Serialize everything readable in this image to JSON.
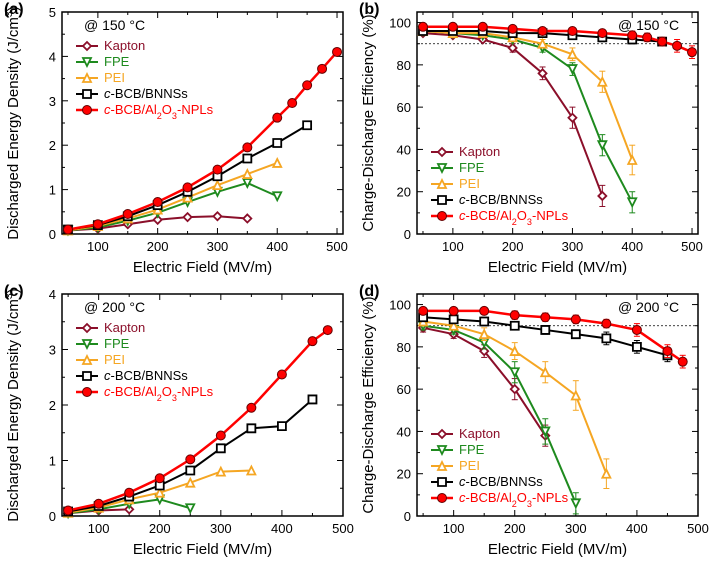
{
  "global": {
    "font_family": "Arial",
    "background_color": "#ffffff",
    "axis_color": "#000000",
    "tick_font_size": 13,
    "label_font_size": 15,
    "legend_font_size": 13,
    "panel_label_font_size": 16,
    "temp_label_font_size": 14
  },
  "series_styles": {
    "Kapton": {
      "color": "#8b0f2a",
      "marker": "diamond-open",
      "line_width": 2,
      "marker_size": 8
    },
    "FPE": {
      "color": "#1e8a1e",
      "marker": "triangle-down-open",
      "line_width": 2,
      "marker_size": 8
    },
    "PEI": {
      "color": "#f5a623",
      "marker": "triangle-up-open",
      "line_width": 2,
      "marker_size": 8
    },
    "c-BCB/BNNSs": {
      "color": "#000000",
      "marker": "square-open",
      "line_width": 2,
      "marker_size": 8
    },
    "c-BCB/Al2O3-NPLs": {
      "color": "#ff0000",
      "marker": "circle-filled",
      "line_width": 2.5,
      "marker_size": 9
    }
  },
  "panels": {
    "a": {
      "label": "(a)",
      "temp": "@ 150 °C",
      "xlabel": "Electric Field (MV/m)",
      "ylabel": "Discharged Energy Density (J/cm³)",
      "xlim": [
        40,
        510
      ],
      "ylim": [
        0,
        5
      ],
      "xticks": [
        100,
        200,
        300,
        400,
        500
      ],
      "yticks": [
        0,
        1,
        2,
        3,
        4,
        5
      ],
      "xminor": 50,
      "yminor": 0.5,
      "legend_pos": "upper-left",
      "data": {
        "Kapton": {
          "x": [
            50,
            100,
            150,
            200,
            250,
            300,
            350
          ],
          "y": [
            0.08,
            0.12,
            0.22,
            0.32,
            0.38,
            0.4,
            0.35
          ]
        },
        "FPE": {
          "x": [
            50,
            100,
            150,
            200,
            250,
            300,
            350,
            400
          ],
          "y": [
            0.08,
            0.15,
            0.3,
            0.48,
            0.72,
            0.95,
            1.15,
            0.85
          ]
        },
        "PEI": {
          "x": [
            50,
            100,
            150,
            200,
            250,
            300,
            350,
            400
          ],
          "y": [
            0.08,
            0.18,
            0.35,
            0.55,
            0.82,
            1.1,
            1.35,
            1.6
          ]
        },
        "c-BCB/BNNSs": {
          "x": [
            50,
            100,
            150,
            200,
            250,
            300,
            350,
            400,
            450
          ],
          "y": [
            0.1,
            0.2,
            0.4,
            0.65,
            0.95,
            1.3,
            1.7,
            2.05,
            2.45
          ]
        },
        "c-BCB/Al2O3-NPLs": {
          "x": [
            50,
            100,
            150,
            200,
            250,
            300,
            350,
            400,
            425,
            450,
            475,
            500
          ],
          "y": [
            0.1,
            0.22,
            0.45,
            0.72,
            1.05,
            1.45,
            1.95,
            2.62,
            2.95,
            3.35,
            3.72,
            4.1
          ]
        }
      }
    },
    "b": {
      "label": "(b)",
      "temp": "@ 150 °C",
      "xlabel": "Electric Field (MV/m)",
      "ylabel": "Charge-Discharge Efficiency (%)",
      "xlim": [
        40,
        510
      ],
      "ylim": [
        0,
        105
      ],
      "xticks": [
        100,
        200,
        300,
        400,
        500
      ],
      "yticks": [
        0,
        20,
        40,
        60,
        80,
        100
      ],
      "xminor": 50,
      "yminor": 10,
      "legend_pos": "lower-left",
      "ref_line_y": 90,
      "data": {
        "Kapton": {
          "x": [
            50,
            100,
            150,
            200,
            250,
            300,
            350
          ],
          "y": [
            95,
            94,
            92,
            88,
            76,
            55,
            18
          ],
          "err": [
            0,
            0,
            1,
            2,
            3,
            5,
            5
          ]
        },
        "FPE": {
          "x": [
            50,
            100,
            150,
            200,
            250,
            300,
            350,
            400
          ],
          "y": [
            96,
            95,
            94,
            92,
            88,
            78,
            42,
            15
          ],
          "err": [
            0,
            0,
            1,
            1,
            2,
            3,
            5,
            5
          ]
        },
        "PEI": {
          "x": [
            50,
            100,
            150,
            200,
            250,
            300,
            350,
            400
          ],
          "y": [
            96,
            95,
            95,
            93,
            90,
            85,
            72,
            35
          ],
          "err": [
            0,
            0,
            1,
            1,
            2,
            3,
            5,
            7
          ]
        },
        "c-BCB/BNNSs": {
          "x": [
            50,
            100,
            150,
            200,
            250,
            300,
            350,
            400,
            450
          ],
          "y": [
            96,
            96,
            96,
            95,
            95,
            94,
            93,
            92,
            91
          ],
          "err": [
            0,
            0,
            1,
            1,
            1,
            1,
            2,
            2,
            2
          ]
        },
        "c-BCB/Al2O3-NPLs": {
          "x": [
            50,
            100,
            150,
            200,
            250,
            300,
            350,
            400,
            425,
            450,
            475,
            500
          ],
          "y": [
            98,
            98,
            98,
            97,
            96,
            96,
            95,
            94,
            93,
            91,
            89,
            86
          ],
          "err": [
            0,
            0,
            1,
            1,
            1,
            1,
            1,
            2,
            2,
            2,
            3,
            3
          ]
        }
      }
    },
    "c": {
      "label": "(c)",
      "temp": "@ 200 °C",
      "xlabel": "Electric Field (MV/m)",
      "ylabel": "Discharged Energy Density (J/cm³)",
      "xlim": [
        40,
        500
      ],
      "ylim": [
        0,
        4
      ],
      "xticks": [
        100,
        200,
        300,
        400,
        500
      ],
      "yticks": [
        0,
        1,
        2,
        3,
        4
      ],
      "xminor": 50,
      "yminor": 0.5,
      "legend_pos": "upper-left",
      "data": {
        "Kapton": {
          "x": [
            50,
            100,
            150
          ],
          "y": [
            0.05,
            0.1,
            0.12
          ]
        },
        "FPE": {
          "x": [
            50,
            100,
            150,
            200,
            250
          ],
          "y": [
            0.05,
            0.12,
            0.22,
            0.3,
            0.14
          ]
        },
        "PEI": {
          "x": [
            50,
            100,
            150,
            200,
            250,
            300,
            350
          ],
          "y": [
            0.06,
            0.15,
            0.3,
            0.42,
            0.6,
            0.8,
            0.82
          ]
        },
        "c-BCB/BNNSs": {
          "x": [
            50,
            100,
            150,
            200,
            250,
            300,
            350,
            400,
            450
          ],
          "y": [
            0.08,
            0.18,
            0.35,
            0.55,
            0.82,
            1.22,
            1.58,
            1.62,
            2.1
          ]
        },
        "c-BCB/Al2O3-NPLs": {
          "x": [
            50,
            100,
            150,
            200,
            250,
            300,
            350,
            400,
            450,
            475
          ],
          "y": [
            0.1,
            0.22,
            0.42,
            0.68,
            1.02,
            1.45,
            1.95,
            2.55,
            3.15,
            3.35
          ]
        }
      }
    },
    "d": {
      "label": "(d)",
      "temp": "@ 200 °C",
      "xlabel": "Electric Field (MV/m)",
      "ylabel": "Charge-Discharge Efficiency (%)",
      "xlim": [
        40,
        500
      ],
      "ylim": [
        0,
        105
      ],
      "xticks": [
        100,
        200,
        300,
        400,
        500
      ],
      "yticks": [
        0,
        20,
        40,
        60,
        80,
        100
      ],
      "xminor": 50,
      "yminor": 10,
      "legend_pos": "lower-left",
      "ref_line_y": 90,
      "data": {
        "Kapton": {
          "x": [
            50,
            100,
            150,
            200,
            250
          ],
          "y": [
            89,
            86,
            78,
            60,
            38
          ],
          "err": [
            2,
            2,
            3,
            5,
            5
          ]
        },
        "FPE": {
          "x": [
            50,
            100,
            150,
            200,
            250,
            300
          ],
          "y": [
            90,
            88,
            82,
            68,
            40,
            6
          ],
          "err": [
            2,
            2,
            3,
            5,
            6,
            5
          ]
        },
        "PEI": {
          "x": [
            50,
            100,
            150,
            200,
            250,
            300,
            350
          ],
          "y": [
            92,
            90,
            86,
            78,
            68,
            57,
            20
          ],
          "err": [
            2,
            2,
            3,
            4,
            5,
            7,
            7
          ]
        },
        "c-BCB/BNNSs": {
          "x": [
            50,
            100,
            150,
            200,
            250,
            300,
            350,
            400,
            450
          ],
          "y": [
            94,
            93,
            92,
            90,
            88,
            86,
            84,
            80,
            76
          ],
          "err": [
            1,
            1,
            2,
            2,
            2,
            2,
            3,
            3,
            3
          ]
        },
        "c-BCB/Al2O3-NPLs": {
          "x": [
            50,
            100,
            150,
            200,
            250,
            300,
            350,
            400,
            450,
            475
          ],
          "y": [
            97,
            97,
            97,
            95,
            94,
            93,
            91,
            88,
            78,
            73
          ],
          "err": [
            1,
            1,
            1,
            2,
            2,
            2,
            2,
            3,
            3,
            3
          ]
        }
      }
    }
  },
  "legend_order": [
    "Kapton",
    "FPE",
    "PEI",
    "c-BCB/BNNSs",
    "c-BCB/Al2O3-NPLs"
  ]
}
